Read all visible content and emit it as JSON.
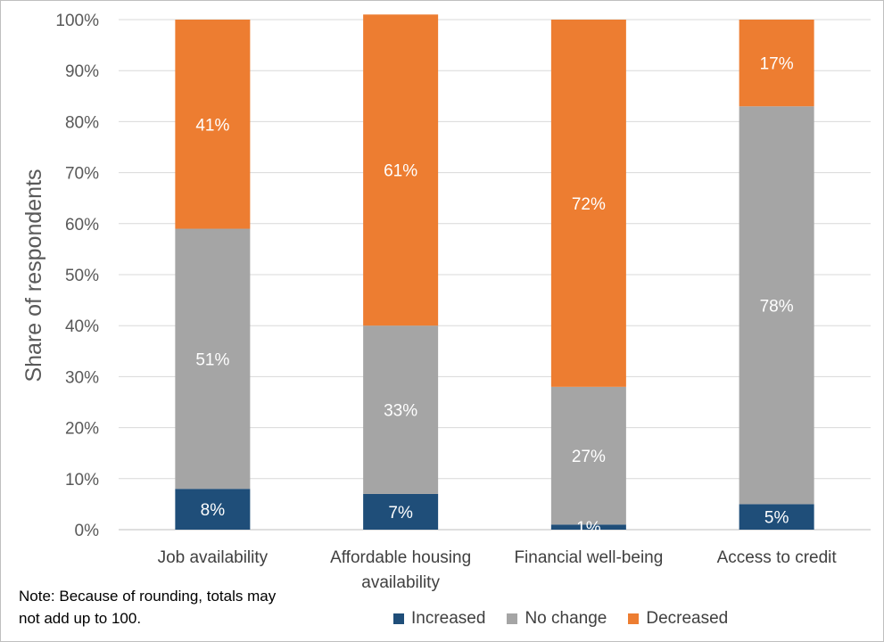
{
  "chart_data": {
    "type": "bar",
    "stacked": true,
    "ylabel": "Share of respondents",
    "xlabel": "",
    "ylim": [
      0,
      100
    ],
    "yticks": [
      "0%",
      "10%",
      "20%",
      "30%",
      "40%",
      "50%",
      "60%",
      "70%",
      "80%",
      "90%",
      "100%"
    ],
    "grid": true,
    "legend_position": "bottom",
    "categories": [
      [
        "Job availability"
      ],
      [
        "Affordable housing",
        "availability"
      ],
      [
        "Financial well-being"
      ],
      [
        "Access to credit"
      ]
    ],
    "series": [
      {
        "name": "Increased",
        "color": "#1f4e79",
        "values": [
          8,
          7,
          1,
          5
        ],
        "labels": [
          "8%",
          "7%",
          "1%",
          "5%"
        ]
      },
      {
        "name": "No change",
        "color": "#a5a5a5",
        "values": [
          51,
          33,
          27,
          78
        ],
        "labels": [
          "51%",
          "33%",
          "27%",
          "78%"
        ]
      },
      {
        "name": "Decreased",
        "color": "#ed7d31",
        "values": [
          41,
          61,
          72,
          17
        ],
        "labels": [
          "41%",
          "61%",
          "72%",
          "17%"
        ]
      }
    ]
  },
  "note": {
    "line1": "Note: Because of rounding, totals may",
    "line2": "not add up to 100."
  }
}
